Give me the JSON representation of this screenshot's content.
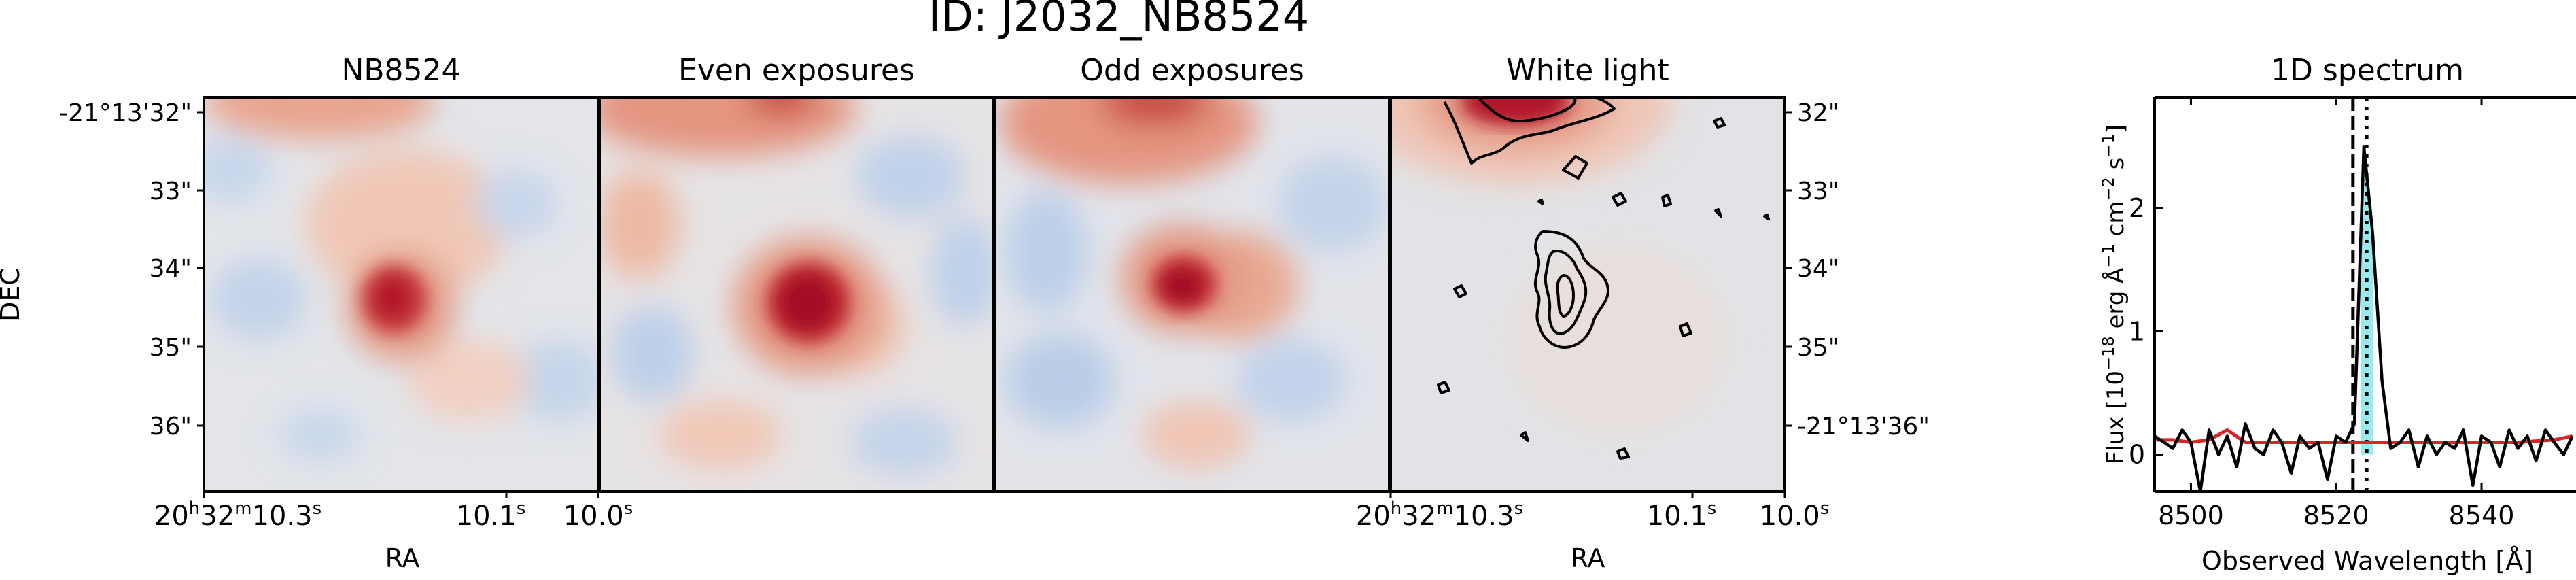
{
  "figure_title": "ID: J2032_NB8524",
  "panels": [
    {
      "title": "NB8524"
    },
    {
      "title": "Even exposures"
    },
    {
      "title": "Odd exposures"
    },
    {
      "title": "White light"
    }
  ],
  "left_axes": {
    "ylabel": "DEC",
    "xlabel": "RA",
    "yticks": [
      "-21°13'32\"",
      "33\"",
      "34\"",
      "35\"",
      "36\""
    ],
    "xticks": [
      {
        "h": "20",
        "m": "32",
        "s": "10.3",
        "hs": "h",
        "ms": "m",
        "ss": "s"
      },
      {
        "s": "10.1",
        "ss": "s"
      },
      {
        "s": "10.0",
        "ss": "s"
      }
    ]
  },
  "right_axes": {
    "xlabel": "RA",
    "yticks": [
      "32\"",
      "33\"",
      "34\"",
      "35\"",
      "-21°13'36\""
    ],
    "xticks": [
      {
        "h": "20",
        "m": "32",
        "s": "10.3",
        "hs": "h",
        "ms": "m",
        "ss": "s"
      },
      {
        "s": "10.1",
        "ss": "s"
      },
      {
        "s": "10.0",
        "ss": "s"
      }
    ]
  },
  "colors": {
    "spectrum": "#000000",
    "noise": "#d62728",
    "fill": "#7fe3e8",
    "image_red": "#b2182b",
    "image_blue": "#92b7e0",
    "image_bg": "#e3e5e9"
  },
  "chart_data": [
    {
      "type": "heatmap",
      "title": "NB8524",
      "description_of_values": "narrow-band image, compact bright source near center",
      "colormap": "diverging red-blue"
    },
    {
      "type": "heatmap",
      "title": "Even exposures",
      "colormap": "diverging red-blue"
    },
    {
      "type": "heatmap",
      "title": "Odd exposures",
      "colormap": "diverging red-blue"
    },
    {
      "type": "heatmap",
      "title": "White light",
      "colormap": "diverging red-blue",
      "contours": true
    },
    {
      "type": "line",
      "title": "1D spectrum",
      "xlabel": "Observed Wavelength [Å]",
      "ylabel_parts": {
        "pre": "Flux [10",
        "exp1": "−18",
        "mid": " erg Å",
        "exp2": "−1",
        "mid2": " cm",
        "exp3": "−2",
        "mid3": " s",
        "exp4": "−1",
        "post": "]"
      },
      "xlim": [
        8495,
        8553
      ],
      "ylim": [
        -0.3,
        2.9
      ],
      "xticks": [
        8500,
        8520,
        8540
      ],
      "yticks": [
        0,
        1,
        2
      ],
      "xtick_labels": [
        "8500",
        "8520",
        "8540"
      ],
      "ytick_labels": [
        "0",
        "1",
        "2"
      ],
      "vlines": [
        {
          "x": 8522.3,
          "style": "dashed"
        },
        {
          "x": 8524.2,
          "style": "dotted"
        }
      ],
      "fill_range": [
        8523.4,
        8525.1
      ],
      "series": [
        {
          "role": "flux",
          "x": [
            8495.0,
            8496.3,
            8497.5,
            8498.8,
            8500.0,
            8501.3,
            8502.5,
            8503.8,
            8505.0,
            8506.3,
            8507.5,
            8508.8,
            8510.0,
            8511.3,
            8512.5,
            8513.8,
            8515.0,
            8516.3,
            8517.5,
            8518.8,
            8520.0,
            8521.3,
            8522.5,
            8523.8,
            8525.0,
            8526.3,
            8527.5,
            8528.8,
            8530.0,
            8531.3,
            8532.5,
            8533.8,
            8535.0,
            8536.3,
            8537.5,
            8538.8,
            8540.0,
            8541.3,
            8542.5,
            8543.8,
            8545.0,
            8546.3,
            8547.5,
            8548.8,
            8550.0,
            8551.3,
            8552.5
          ],
          "values": [
            0.15,
            0.1,
            0.05,
            0.2,
            0.1,
            -0.3,
            0.2,
            0.0,
            0.15,
            -0.1,
            0.25,
            0.05,
            0.0,
            0.2,
            0.1,
            -0.15,
            0.15,
            0.05,
            0.1,
            -0.2,
            0.15,
            0.1,
            0.25,
            2.5,
            1.8,
            0.6,
            0.05,
            0.1,
            0.2,
            -0.1,
            0.15,
            0.0,
            0.1,
            0.05,
            0.2,
            -0.25,
            0.15,
            0.1,
            -0.1,
            0.2,
            0.05,
            0.15,
            -0.05,
            0.2,
            0.1,
            0.0,
            0.15
          ]
        },
        {
          "role": "noise",
          "x": [
            8495.0,
            8497.5,
            8500.0,
            8502.5,
            8505.0,
            8507.5,
            8510.0,
            8515.0,
            8520.0,
            8525.0,
            8530.0,
            8535.0,
            8540.0,
            8545.0,
            8550.0,
            8552.5
          ],
          "values": [
            0.12,
            0.12,
            0.1,
            0.12,
            0.2,
            0.1,
            0.1,
            0.1,
            0.1,
            0.1,
            0.1,
            0.1,
            0.1,
            0.1,
            0.12,
            0.15
          ]
        }
      ]
    }
  ]
}
